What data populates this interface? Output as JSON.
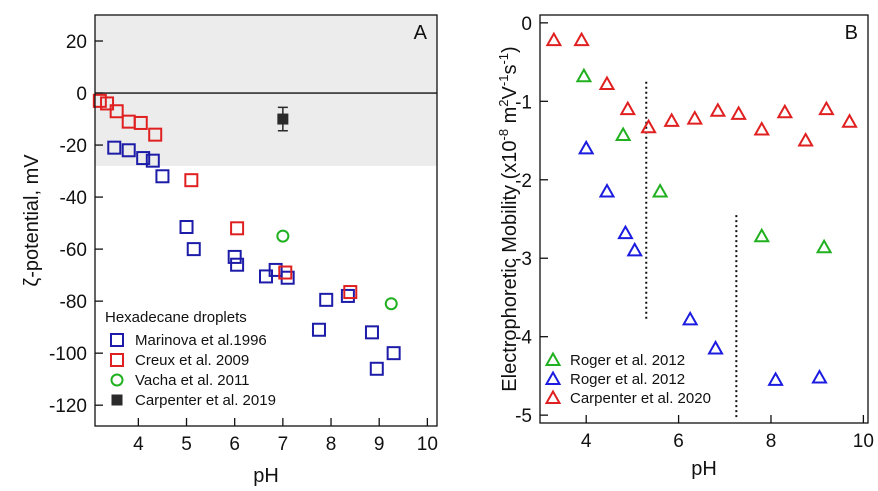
{
  "chart_data": [
    {
      "type": "scatter",
      "panel_label": "A",
      "xlabel": "pH",
      "ylabel": "ζ-potential, mV",
      "xlim": [
        3.1,
        10.2
      ],
      "ylim": [
        -128,
        30
      ],
      "xticks": [
        4,
        5,
        6,
        7,
        8,
        9,
        10
      ],
      "yticks": [
        20,
        0,
        -20,
        -40,
        -60,
        -80,
        -100,
        -120
      ],
      "shaded_band": [
        -28,
        30
      ],
      "zero_line": true,
      "legend_title": "Hexadecane droplets",
      "legend_position": "bottom-left",
      "series": [
        {
          "name": "Marinova et al.1996",
          "marker": "square-open",
          "color": "#1c1ca8",
          "points": [
            [
              3.5,
              -21
            ],
            [
              3.8,
              -22
            ],
            [
              4.1,
              -25
            ],
            [
              4.3,
              -26
            ],
            [
              4.5,
              -32
            ],
            [
              5.0,
              -51.5
            ],
            [
              5.15,
              -60
            ],
            [
              6.0,
              -63
            ],
            [
              6.05,
              -66
            ],
            [
              6.65,
              -70.5
            ],
            [
              6.85,
              -68
            ],
            [
              7.1,
              -71
            ],
            [
              7.75,
              -91
            ],
            [
              7.9,
              -79.5
            ],
            [
              8.35,
              -78
            ],
            [
              8.85,
              -92
            ],
            [
              8.95,
              -106
            ],
            [
              9.3,
              -100
            ]
          ]
        },
        {
          "name": "Creux et al. 2009",
          "marker": "square-open",
          "color": "#e02020",
          "points": [
            [
              3.2,
              -3
            ],
            [
              3.35,
              -4
            ],
            [
              3.55,
              -7
            ],
            [
              3.8,
              -11
            ],
            [
              4.05,
              -11.5
            ],
            [
              4.35,
              -16
            ],
            [
              5.1,
              -33.5
            ],
            [
              6.05,
              -52
            ],
            [
              7.05,
              -69
            ],
            [
              8.4,
              -76.5
            ]
          ]
        },
        {
          "name": "Vacha et al. 2011",
          "marker": "circle-open",
          "color": "#20b020",
          "points": [
            [
              7.0,
              -55
            ],
            [
              9.25,
              -81
            ]
          ]
        },
        {
          "name": "Carpenter et al. 2019",
          "marker": "square-filled",
          "color": "#2a2a2a",
          "points": [
            [
              7.0,
              -10
            ]
          ],
          "error": [
            4.5
          ]
        }
      ]
    },
    {
      "type": "scatter",
      "panel_label": "B",
      "xlabel": "pH",
      "ylabel_prefix": "Electrophoretic Mobility (x10",
      "ylabel_exp1": "-8",
      "ylabel_mid": " m",
      "ylabel_exp2": "2",
      "ylabel_v": "V",
      "ylabel_exp3": "-1",
      "ylabel_s": "s",
      "ylabel_exp4": "-1",
      "ylabel_suffix": ")",
      "xlim": [
        3.0,
        10.1
      ],
      "ylim": [
        -5.1,
        0.1
      ],
      "xticks": [
        4,
        6,
        8,
        10
      ],
      "yticks": [
        0,
        -1,
        -2,
        -3,
        -4,
        -5
      ],
      "dotted_vlines": [
        {
          "x": 5.3,
          "y_range": [
            -0.75,
            -3.8
          ]
        },
        {
          "x": 7.25,
          "y_range": [
            -2.45,
            -5.05
          ]
        }
      ],
      "legend_position": "bottom-left",
      "series": [
        {
          "name": "Roger et al. 2012",
          "marker": "triangle-open",
          "color": "#20b020",
          "points": [
            [
              3.95,
              -0.68
            ],
            [
              4.8,
              -1.43
            ],
            [
              5.6,
              -2.15
            ],
            [
              7.8,
              -2.72
            ],
            [
              9.15,
              -2.86
            ]
          ]
        },
        {
          "name": "Roger et al. 2012",
          "marker": "triangle-open",
          "color": "#1c1ce0",
          "points": [
            [
              4.0,
              -1.6
            ],
            [
              4.45,
              -2.15
            ],
            [
              4.85,
              -2.68
            ],
            [
              5.05,
              -2.9
            ],
            [
              6.25,
              -3.78
            ],
            [
              6.8,
              -4.15
            ],
            [
              8.1,
              -4.55
            ],
            [
              9.05,
              -4.52
            ]
          ]
        },
        {
          "name": "Carpenter et al. 2020",
          "marker": "triangle-open",
          "color": "#e02020",
          "points": [
            [
              3.3,
              -0.22
            ],
            [
              3.9,
              -0.22
            ],
            [
              4.45,
              -0.78
            ],
            [
              4.9,
              -1.1
            ],
            [
              5.35,
              -1.33
            ],
            [
              5.85,
              -1.25
            ],
            [
              6.35,
              -1.22
            ],
            [
              6.85,
              -1.12
            ],
            [
              7.3,
              -1.16
            ],
            [
              7.8,
              -1.36
            ],
            [
              8.3,
              -1.14
            ],
            [
              8.75,
              -1.5
            ],
            [
              9.2,
              -1.1
            ],
            [
              9.7,
              -1.26
            ]
          ]
        }
      ]
    }
  ]
}
